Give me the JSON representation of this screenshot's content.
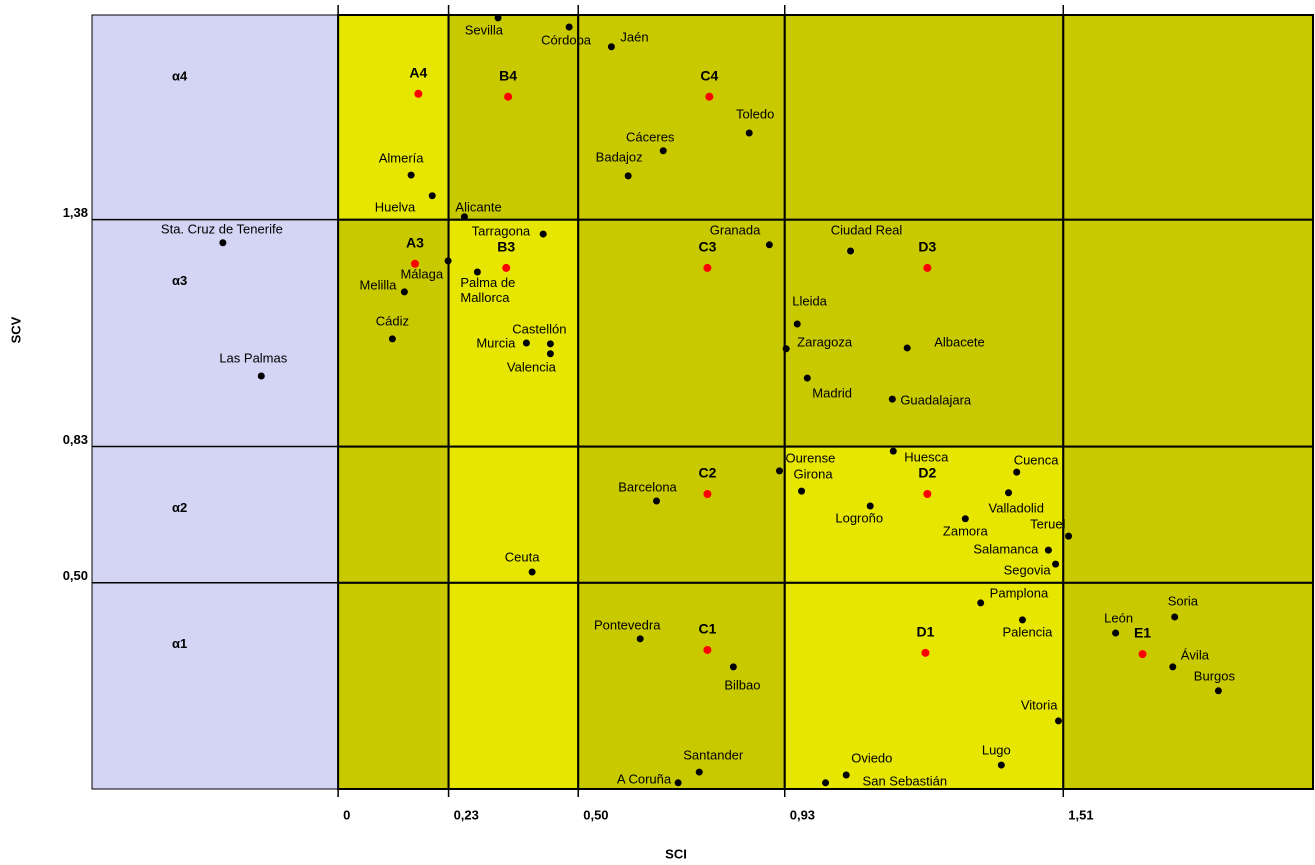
{
  "chart_data": {
    "type": "scatter",
    "x_label": "SCI",
    "y_label": "SCV",
    "xlim": [
      -0.5125,
      2.03
    ],
    "ylim": [
      0,
      1.876
    ],
    "xticks": [
      0,
      {
        "value": 0.23,
        "label": "0,23"
      },
      {
        "value": 0.5,
        "label": "0,50"
      },
      {
        "value": 0.93,
        "label": "0,93"
      },
      {
        "value": 1.51,
        "label": "1,51"
      }
    ],
    "yticks": [
      {
        "value": 0.5,
        "label": "0,50"
      },
      {
        "value": 0.83,
        "label": "0,83"
      },
      {
        "value": 1.38,
        "label": "1,38"
      }
    ],
    "row_labels": [
      "α1",
      "α2",
      "α3",
      "α4"
    ],
    "background_color": "#d4d4f4",
    "cell_colors": [
      [
        "#c9c900",
        "#e6e600",
        "#c9c900",
        "#e6e600",
        "#c9c900"
      ],
      [
        "#c9c900",
        "#e6e600",
        "#c9c900",
        "#e6e600",
        "#c9c900"
      ],
      [
        "#c9c900",
        "#e6e600",
        "#c9c900",
        "#c9c900",
        "#c9c900"
      ],
      [
        "#e6e600",
        "#c9c900",
        "#c9c900",
        "#c9c900",
        "#c9c900"
      ]
    ],
    "points": {
      "color": "#000000",
      "labels": [
        "Sevilla",
        "Córdoba",
        "Jaén",
        "Toledo",
        "Cáceres",
        "Badajoz",
        "Almería",
        "Huelva",
        "Alicante",
        "Sta. Cruz de Tenerife",
        "Tarragona",
        "Granada",
        "Ciudad Real",
        "Málaga",
        "Palma de Mallorca",
        "Melilla",
        "Lleida",
        "Cádiz",
        "Castellón",
        "Murcia",
        "Valencia",
        "Zaragoza",
        "Albacete",
        "Las Palmas",
        "Madrid",
        "Guadalajara",
        "Huesca",
        "Ourense",
        "Cuenca",
        "Girona",
        "Barcelona",
        "Valladolid",
        "Logroño",
        "Zamora",
        "Teruel",
        "Salamanca",
        "Segovia",
        "Ceuta",
        "Pamplona",
        "Soria",
        "Palencia",
        "León",
        "Pontevedra",
        "Ávila",
        "Bilbao",
        "Burgos",
        "Vitoria",
        "Lugo",
        "Oviedo",
        "Santander",
        "San Sebastián",
        "A Coruña"
      ],
      "x": [
        0.333,
        0.481,
        0.569,
        0.856,
        0.677,
        0.604,
        0.152,
        0.196,
        0.263,
        -0.24,
        0.427,
        0.898,
        1.067,
        0.229,
        0.29,
        0.138,
        0.956,
        0.113,
        0.442,
        0.392,
        0.442,
        0.933,
        1.185,
        -0.16,
        0.977,
        1.154,
        1.156,
        0.919,
        1.413,
        0.965,
        0.663,
        1.396,
        1.108,
        1.306,
        1.521,
        1.479,
        1.494,
        0.404,
        1.338,
        1.742,
        1.425,
        1.619,
        0.629,
        1.738,
        0.823,
        1.833,
        1.5,
        1.381,
        1.058,
        0.752,
        1.015,
        0.708
      ],
      "y": [
        1.869,
        1.847,
        1.799,
        1.59,
        1.547,
        1.486,
        1.488,
        1.438,
        1.387,
        1.324,
        1.345,
        1.319,
        1.304,
        1.28,
        1.253,
        1.205,
        1.127,
        1.091,
        1.079,
        1.081,
        1.055,
        1.067,
        1.069,
        1.001,
        0.996,
        0.945,
        0.819,
        0.771,
        0.768,
        0.722,
        0.698,
        0.718,
        0.686,
        0.655,
        0.613,
        0.579,
        0.545,
        0.526,
        0.451,
        0.417,
        0.41,
        0.378,
        0.364,
        0.296,
        0.296,
        0.238,
        0.165,
        0.058,
        0.034,
        0.041,
        0.015,
        0.015
      ]
    },
    "centers": {
      "color": "#ff0000",
      "labels": [
        "A4",
        "B4",
        "C4",
        "A3",
        "B3",
        "C3",
        "D3",
        "C2",
        "D2",
        "C1",
        "D1",
        "E1"
      ],
      "x": [
        0.167,
        0.354,
        0.773,
        0.16,
        0.35,
        0.769,
        1.227,
        0.769,
        1.227,
        0.769,
        1.223,
        1.675
      ],
      "y": [
        1.685,
        1.678,
        1.678,
        1.273,
        1.263,
        1.263,
        1.263,
        0.715,
        0.715,
        0.337,
        0.33,
        0.327
      ]
    }
  }
}
